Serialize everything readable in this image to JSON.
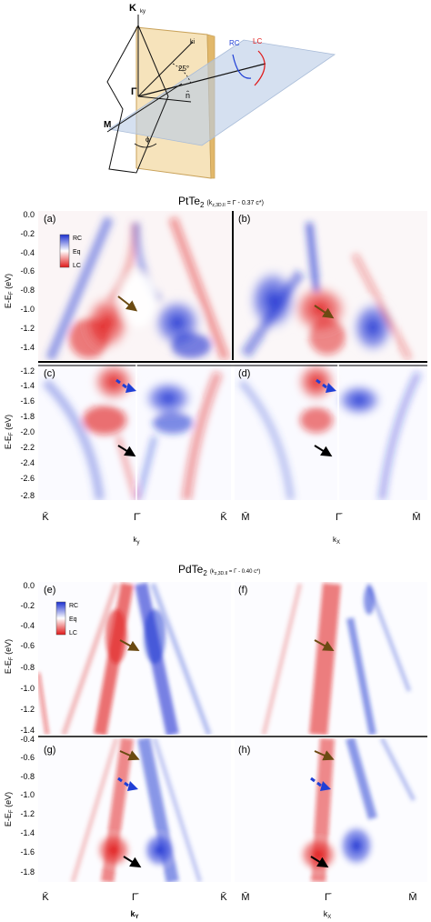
{
  "schematic": {
    "labels": {
      "K": "K",
      "ky": "ky",
      "ki": "ki",
      "angle": "25°",
      "gamma": "Γ",
      "n": "n̂",
      "M": "M",
      "phi": "ϕ",
      "RC": "RC",
      "LC": "LC"
    }
  },
  "pt": {
    "title": "PtTe",
    "title_sub": "2",
    "title_suffix": "(k",
    "title_kz_sub": "z,3D.II",
    "title_tail": " = Γ - 0.37 c*)",
    "panels": {
      "a": "(a)",
      "b": "(b)",
      "c": "(c)",
      "d": "(d)"
    },
    "yticks_top": [
      "0.0",
      "-0.2",
      "-0.4",
      "-0.6",
      "-0.8",
      "-1.0",
      "-1.2",
      "-1.4"
    ],
    "yticks_bottom": [
      "-1.2",
      "-1.4",
      "-1.6",
      "-1.8",
      "-2.0",
      "-2.2",
      "-2.4",
      "-2.6",
      "-2.8"
    ],
    "ylabel": "E-E",
    "ylabel_sub": "F",
    "ylabel_unit": " (eV)",
    "legend": {
      "RC": "RC",
      "Eq": "Eq",
      "LC": "LC"
    },
    "xticks_left": [
      "K̄",
      "Γ̄",
      "K̄"
    ],
    "xticks_right": [
      "M̄",
      "Γ̄",
      "M̄"
    ],
    "xlabel_left": "k",
    "xlabel_left_sub": "y",
    "xlabel_right": "k",
    "xlabel_right_sub": "X"
  },
  "pd": {
    "title": "PdTe",
    "title_sub": "2",
    "title_suffix": "(k",
    "title_kz_sub": "z,3D.II",
    "title_tail": " = Γ - 0.40 c*)",
    "panels": {
      "e": "(e)",
      "f": "(f)",
      "g": "(g)",
      "h": "(h)"
    },
    "yticks_top": [
      "0.0",
      "-0.2",
      "-0.4",
      "-0.6",
      "-0.8",
      "-1.0",
      "-1.2",
      "-1.4"
    ],
    "yticks_bottom": [
      "-0.4",
      "-0.6",
      "-0.8",
      "-1.0",
      "-1.2",
      "-1.4",
      "-1.6",
      "-1.8"
    ],
    "ylabel": "E-E",
    "ylabel_sub": "F",
    "ylabel_unit": " (eV)",
    "legend": {
      "RC": "RC",
      "Eq": "Eq",
      "LC": "LC"
    },
    "xticks_left": [
      "K̄",
      "Γ̄",
      "K̄"
    ],
    "xticks_right": [
      "M̄",
      "Γ̄",
      "M̄"
    ],
    "xlabel_left": "k",
    "xlabel_left_sub": "Y",
    "xlabel_right": "k",
    "xlabel_right_sub": "X"
  },
  "colors": {
    "rc": "#1f3fd6",
    "lc": "#e01818",
    "eq": "#ffffff",
    "arrow_brown": "#6b4a12",
    "arrow_black": "#000000"
  }
}
